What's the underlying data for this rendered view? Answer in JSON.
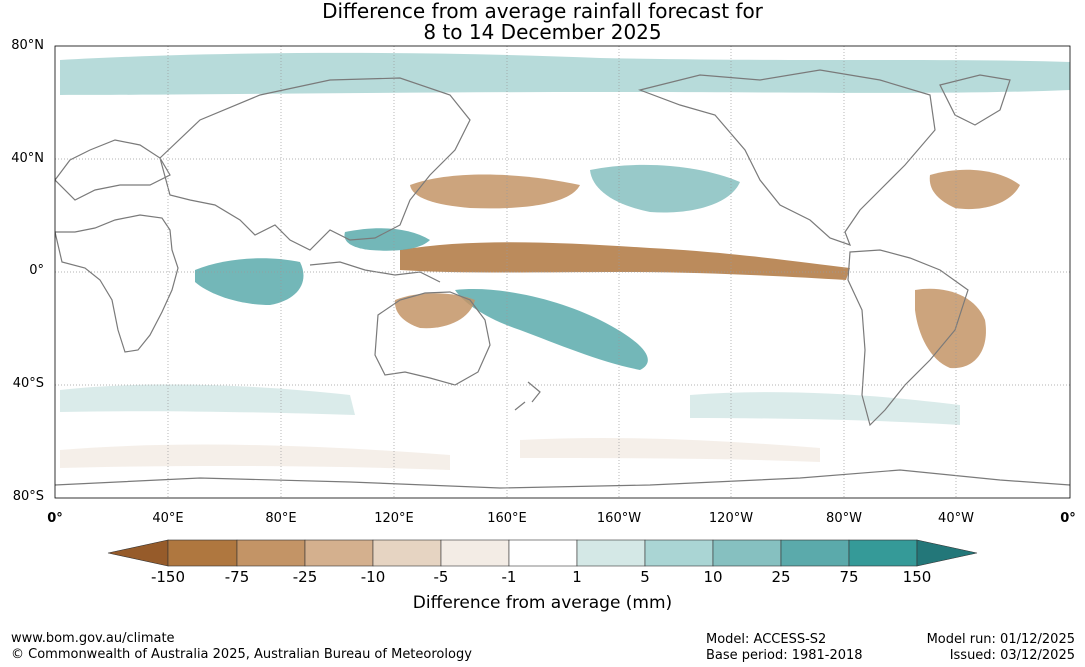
{
  "title": {
    "line1": "Difference from average rainfall forecast for",
    "line2": "8 to 14 December 2025"
  },
  "map": {
    "lat_labels": [
      "80°N",
      "40°N",
      "0°",
      "40°S",
      "80°S"
    ],
    "lon_labels": [
      "0°",
      "40°E",
      "80°E",
      "120°E",
      "160°E",
      "160°W",
      "120°W",
      "80°W",
      "40°W",
      "0°"
    ],
    "colors": {
      "ocean": "#ffffff",
      "coast": "#7a7a7a",
      "grid": "#9a9a9a"
    },
    "anomaly_zones": [
      {
        "region": "equatorial-pacific-dry",
        "level": "-75"
      },
      {
        "region": "south-pacific-convergence-wet",
        "level": "75"
      },
      {
        "region": "western-pacific-wet",
        "level": "75"
      },
      {
        "region": "indian-ocean-wet",
        "level": "75"
      },
      {
        "region": "north-pacific-wet",
        "level": "25"
      },
      {
        "region": "north-pacific-dry",
        "level": "-25"
      },
      {
        "region": "northern-australia-dry",
        "level": "-25"
      },
      {
        "region": "brazil-dry",
        "level": "-25"
      },
      {
        "region": "southern-ocean-wet",
        "level": "5"
      },
      {
        "region": "southern-ocean-dry",
        "level": "-5"
      },
      {
        "region": "arctic-wet",
        "level": "10"
      },
      {
        "region": "north-atlantic-dry",
        "level": "-25"
      }
    ]
  },
  "colorbar": {
    "ticks": [
      "-150",
      "-75",
      "-25",
      "-10",
      "-5",
      "-1",
      "1",
      "5",
      "10",
      "25",
      "75",
      "150"
    ],
    "colors": [
      "#965b2a",
      "#af773f",
      "#c39466",
      "#d4b08e",
      "#e6d4c2",
      "#f3ece5",
      "#ffffff",
      "#d4e8e6",
      "#aad5d4",
      "#86c0c0",
      "#5baaab",
      "#359a98",
      "#237779"
    ],
    "label": "Difference from average (mm)"
  },
  "footer": {
    "website": "www.bom.gov.au/climate",
    "copyright": "© Commonwealth of Australia 2025, Australian Bureau of Meteorology",
    "model": "Model: ACCESS-S2",
    "base_period": "Base period: 1981-2018",
    "model_run": "Model run: 01/12/2025",
    "issued": "Issued: 03/12/2025"
  }
}
